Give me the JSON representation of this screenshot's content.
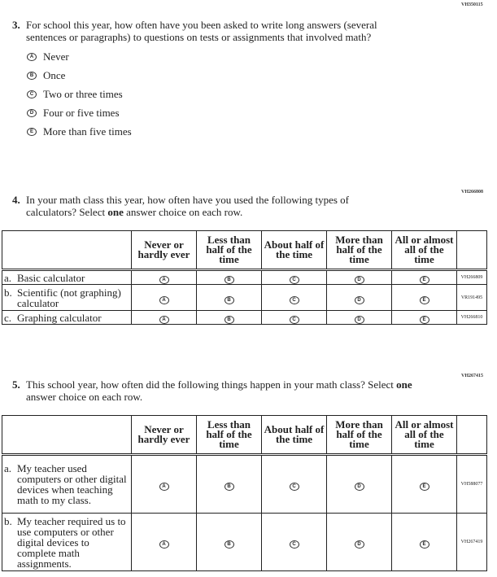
{
  "q3": {
    "code": "VH350115",
    "number": "3.",
    "text": "For school this year, how often have you been asked to write long answers (several sentences or paragraphs) to questions on tests or assignments that involved math?",
    "options": [
      {
        "letter": "A",
        "label": "Never"
      },
      {
        "letter": "B",
        "label": "Once"
      },
      {
        "letter": "C",
        "label": "Two or three times"
      },
      {
        "letter": "D",
        "label": "Four or five times"
      },
      {
        "letter": "E",
        "label": "More than five times"
      }
    ]
  },
  "columns": [
    "Never or hardly ever",
    "Less than half of the time",
    "About half of the time",
    "More than half of the time",
    "All or almost all of the time"
  ],
  "letters": [
    "A",
    "B",
    "C",
    "D",
    "E"
  ],
  "q4": {
    "code": "VH266808",
    "number": "4.",
    "text_before": "In your math class this year, how often have you used the following types of calculators? Select ",
    "bold": "one",
    "text_after": " answer choice on each row.",
    "rows": [
      {
        "letter": "a.",
        "label": "Basic calculator",
        "code": "VH266809"
      },
      {
        "letter": "b.",
        "label": "Scientific (not graphing) calculator",
        "code": "VR191495"
      },
      {
        "letter": "c.",
        "label": "Graphing calculator",
        "code": "VH266810"
      }
    ]
  },
  "q5": {
    "code": "VH267415",
    "number": "5.",
    "text_before": "This school year, how often did the following things happen in your math class? Select ",
    "bold": "one",
    "text_after": " answer choice on each row.",
    "rows": [
      {
        "letter": "a.",
        "label": "My teacher used computers or other digital devices when teaching math to my class.",
        "code": "VH588077"
      },
      {
        "letter": "b.",
        "label": "My teacher required us to use computers or other digital devices to complete math assignments.",
        "code": "VH267419"
      }
    ]
  }
}
